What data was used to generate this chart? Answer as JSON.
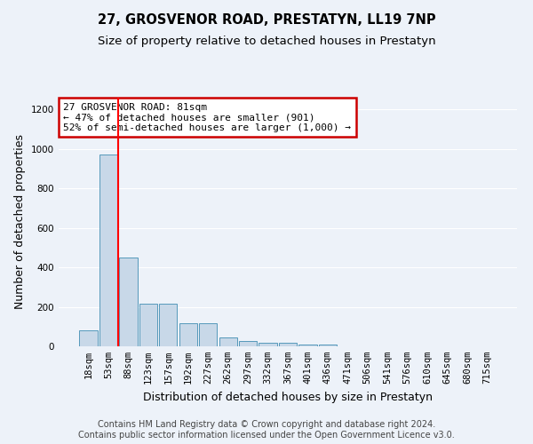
{
  "title": "27, GROSVENOR ROAD, PRESTATYN, LL19 7NP",
  "subtitle": "Size of property relative to detached houses in Prestatyn",
  "xlabel": "Distribution of detached houses by size in Prestatyn",
  "ylabel": "Number of detached properties",
  "footer_line1": "Contains HM Land Registry data © Crown copyright and database right 2024.",
  "footer_line2": "Contains public sector information licensed under the Open Government Licence v3.0.",
  "bar_labels": [
    "18sqm",
    "53sqm",
    "88sqm",
    "123sqm",
    "157sqm",
    "192sqm",
    "227sqm",
    "262sqm",
    "297sqm",
    "332sqm",
    "367sqm",
    "401sqm",
    "436sqm",
    "471sqm",
    "506sqm",
    "541sqm",
    "576sqm",
    "610sqm",
    "645sqm",
    "680sqm",
    "715sqm"
  ],
  "bar_values": [
    80,
    970,
    450,
    215,
    215,
    115,
    115,
    45,
    25,
    20,
    20,
    10,
    10,
    0,
    0,
    0,
    0,
    0,
    0,
    0,
    0
  ],
  "bar_color": "#c8d8e8",
  "bar_edge_color": "#5599bb",
  "background_color": "#edf2f9",
  "grid_color": "#ffffff",
  "red_line_x": 1.5,
  "annotation_text": "27 GROSVENOR ROAD: 81sqm\n← 47% of detached houses are smaller (901)\n52% of semi-detached houses are larger (1,000) →",
  "annotation_box_color": "#ffffff",
  "annotation_box_edge_color": "#cc0000",
  "ylim": [
    0,
    1260
  ],
  "yticks": [
    0,
    200,
    400,
    600,
    800,
    1000,
    1200
  ],
  "title_fontsize": 10.5,
  "subtitle_fontsize": 9.5,
  "ylabel_fontsize": 9,
  "xlabel_fontsize": 9,
  "annotation_fontsize": 8,
  "footer_fontsize": 7,
  "tick_fontsize": 7.5
}
